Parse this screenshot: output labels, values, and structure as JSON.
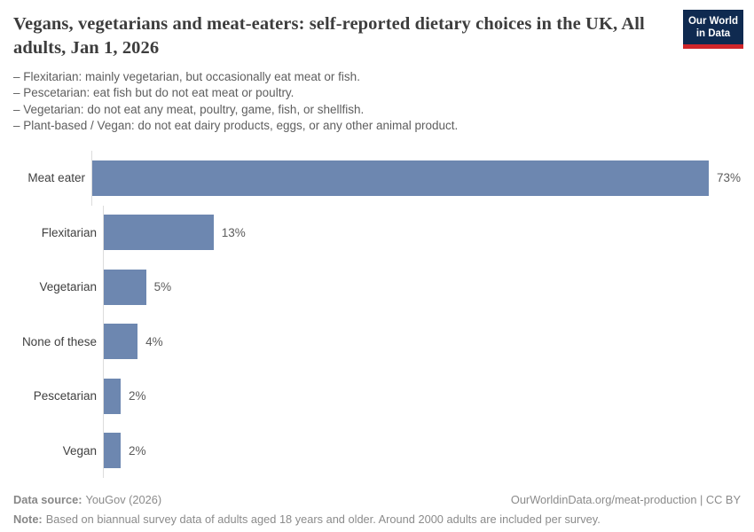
{
  "header": {
    "title": "Vegans, vegetarians and meat-eaters: self-reported dietary choices in the UK, All adults, Jan 1, 2026",
    "subtitle_lines": [
      "– Flexitarian: mainly vegetarian, but occasionally eat meat or fish.",
      "– Pescetarian: eat fish but do not eat meat or poultry.",
      "– Vegetarian: do not eat any meat, poultry, game, fish, or shellfish.",
      "– Plant-based / Vegan: do not eat dairy products, eggs, or any other animal product."
    ],
    "logo_line1": "Our World",
    "logo_line2": "in Data"
  },
  "chart_data": {
    "type": "bar",
    "orientation": "horizontal",
    "title": "Vegans, vegetarians and meat-eaters: self-reported dietary choices in the UK, All adults, Jan 1, 2026",
    "categories": [
      "Meat eater",
      "Flexitarian",
      "Vegetarian",
      "None of these",
      "Pescetarian",
      "Vegan"
    ],
    "values": [
      73,
      13,
      5,
      4,
      2,
      2
    ],
    "value_labels": [
      "73%",
      "13%",
      "5%",
      "4%",
      "2%",
      "2%"
    ],
    "unit": "%",
    "xlabel": "",
    "ylabel": "",
    "xlim": [
      0,
      77
    ],
    "grid": false,
    "legend": "none",
    "bar_color": "#6d87b0"
  },
  "footer": {
    "data_source_label": "Data source:",
    "data_source_value": "YouGov (2026)",
    "attribution": "OurWorldinData.org/meat-production | CC BY",
    "note_label": "Note:",
    "note_text": "Based on biannual survey data of adults aged 18 years and older. Around 2000 adults are included per survey."
  },
  "colors": {
    "bar": "#6d87b0",
    "logo_background": "#0f2a50",
    "logo_stripe": "#d0262a",
    "title_text": "#3d3d3d",
    "subtitle_text": "#5e5e5e",
    "axis_line": "#dcdcdc",
    "footer_text": "#8b8b8b"
  }
}
